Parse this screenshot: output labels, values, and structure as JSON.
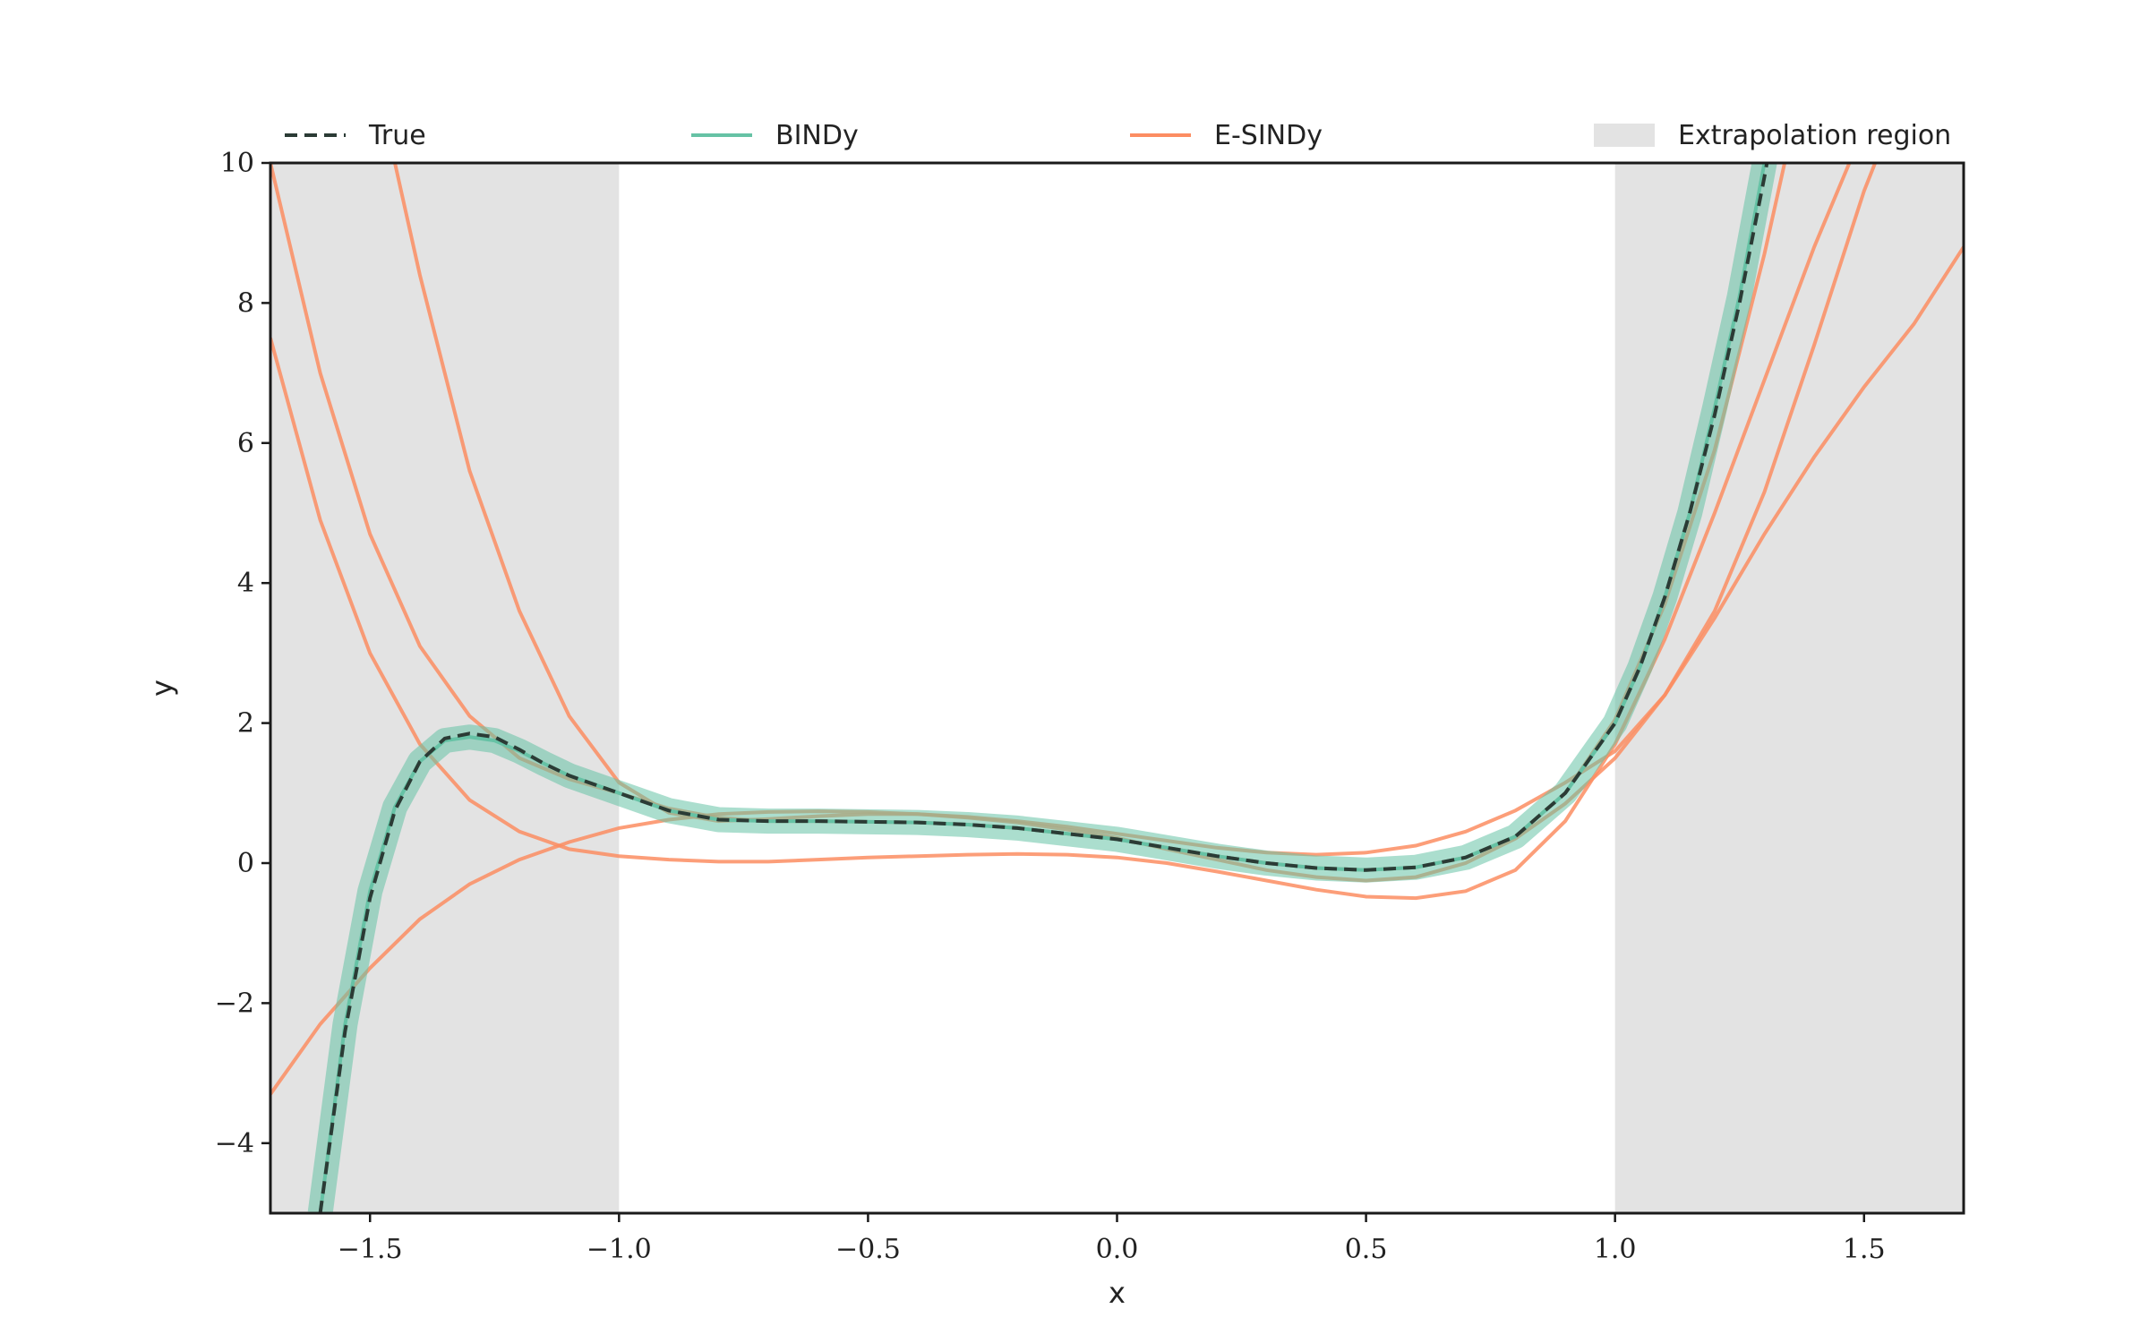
{
  "chart_data": {
    "type": "line",
    "title": "",
    "xlabel": "x",
    "ylabel": "y",
    "xlim": [
      -1.7,
      1.7
    ],
    "ylim": [
      -5,
      10
    ],
    "x_ticks": [
      -1.5,
      -1.0,
      -0.5,
      0.0,
      0.5,
      1.0,
      1.5
    ],
    "x_tick_labels": [
      "−1.5",
      "−1.0",
      "−0.5",
      "0.0",
      "0.5",
      "1.0",
      "1.5"
    ],
    "y_ticks": [
      -4,
      -2,
      0,
      2,
      4,
      6,
      8,
      10
    ],
    "y_tick_labels": [
      "−4",
      "−2",
      "0",
      "2",
      "4",
      "6",
      "8",
      "10"
    ],
    "grid": false,
    "legend_position": "top, above plot area",
    "legend": [
      {
        "label": "True",
        "color": "#2b3b35",
        "style": "dashed"
      },
      {
        "label": "BINDy",
        "color": "#66c2a5",
        "style": "solid"
      },
      {
        "label": "E-SINDy",
        "color": "#fc8d62",
        "style": "solid"
      },
      {
        "label": "Extrapolation region",
        "color": "#e3e3e3",
        "style": "patch"
      }
    ],
    "extrapolation_regions": [
      [
        -1.7,
        -1.0
      ],
      [
        1.0,
        1.7
      ]
    ],
    "series": [
      {
        "name": "True",
        "color": "#2b3b35",
        "style": "dashed",
        "x": [
          -1.6,
          -1.55,
          -1.5,
          -1.45,
          -1.4,
          -1.35,
          -1.3,
          -1.25,
          -1.2,
          -1.15,
          -1.1,
          -1.0,
          -0.9,
          -0.8,
          -0.7,
          -0.6,
          -0.5,
          -0.4,
          -0.3,
          -0.2,
          -0.1,
          0.0,
          0.1,
          0.2,
          0.3,
          0.4,
          0.5,
          0.6,
          0.7,
          0.8,
          0.9,
          1.0,
          1.05,
          1.1,
          1.15,
          1.2,
          1.25,
          1.3,
          1.35
        ],
        "y": [
          -5.0,
          -2.4,
          -0.5,
          0.75,
          1.45,
          1.78,
          1.85,
          1.8,
          1.62,
          1.42,
          1.25,
          1.0,
          0.75,
          0.62,
          0.6,
          0.6,
          0.59,
          0.58,
          0.55,
          0.5,
          0.42,
          0.34,
          0.22,
          0.1,
          0.0,
          -0.07,
          -0.1,
          -0.06,
          0.08,
          0.38,
          1.0,
          2.0,
          2.8,
          3.8,
          5.0,
          6.4,
          8.0,
          9.8,
          11.8
        ]
      },
      {
        "name": "BINDy",
        "color": "#66c2a5",
        "style": "solid",
        "x": [
          -1.6,
          -1.55,
          -1.5,
          -1.45,
          -1.4,
          -1.35,
          -1.3,
          -1.25,
          -1.2,
          -1.15,
          -1.1,
          -1.0,
          -0.9,
          -0.8,
          -0.7,
          -0.6,
          -0.5,
          -0.4,
          -0.3,
          -0.2,
          -0.1,
          0.0,
          0.1,
          0.2,
          0.3,
          0.4,
          0.5,
          0.6,
          0.7,
          0.8,
          0.9,
          1.0,
          1.05,
          1.1,
          1.15,
          1.2,
          1.25,
          1.3,
          1.35
        ],
        "y": [
          -5.0,
          -2.3,
          -0.4,
          0.8,
          1.45,
          1.75,
          1.8,
          1.75,
          1.6,
          1.42,
          1.25,
          1.0,
          0.75,
          0.62,
          0.6,
          0.6,
          0.59,
          0.58,
          0.55,
          0.5,
          0.42,
          0.34,
          0.22,
          0.1,
          0.0,
          -0.07,
          -0.1,
          -0.06,
          0.08,
          0.38,
          1.0,
          2.0,
          2.8,
          3.8,
          5.0,
          6.5,
          8.1,
          10.0,
          12.0
        ]
      },
      {
        "name": "E-SINDy (a)",
        "color": "#fc8d62",
        "style": "solid",
        "x": [
          -1.7,
          -1.6,
          -1.5,
          -1.4,
          -1.3,
          -1.2,
          -1.1,
          -1.0,
          -0.9,
          -0.8,
          -0.7,
          -0.6,
          -0.5,
          -0.4,
          -0.3,
          -0.2,
          -0.1,
          0.0,
          0.1,
          0.2,
          0.3,
          0.4,
          0.5,
          0.6,
          0.7,
          0.8,
          0.9,
          1.0,
          1.1,
          1.2,
          1.3,
          1.35
        ],
        "y": [
          10.0,
          7.0,
          4.7,
          3.1,
          2.1,
          1.5,
          1.2,
          1.0,
          0.78,
          0.65,
          0.6,
          0.6,
          0.59,
          0.58,
          0.55,
          0.5,
          0.42,
          0.34,
          0.22,
          0.1,
          0.0,
          -0.07,
          -0.1,
          -0.06,
          0.08,
          0.38,
          1.0,
          2.05,
          3.7,
          5.9,
          8.7,
          10.3
        ]
      },
      {
        "name": "E-SINDy (b)",
        "color": "#fc8d62",
        "style": "solid",
        "x": [
          -1.7,
          -1.6,
          -1.5,
          -1.4,
          -1.3,
          -1.2,
          -1.1,
          -1.0,
          -0.9,
          -0.8,
          -0.7,
          -0.6,
          -0.5,
          -0.4,
          -0.3,
          -0.2,
          -0.1,
          0.0,
          0.1,
          0.2,
          0.3,
          0.4,
          0.5,
          0.6,
          0.7,
          0.8,
          0.9,
          1.0,
          1.1,
          1.2,
          1.3,
          1.4,
          1.5,
          1.6,
          1.7
        ],
        "y": [
          -3.3,
          -2.3,
          -1.5,
          -0.8,
          -0.3,
          0.05,
          0.3,
          0.5,
          0.62,
          0.7,
          0.73,
          0.74,
          0.73,
          0.7,
          0.65,
          0.58,
          0.48,
          0.36,
          0.2,
          0.05,
          -0.1,
          -0.2,
          -0.25,
          -0.2,
          0.0,
          0.35,
          0.85,
          1.5,
          2.4,
          3.5,
          4.7,
          5.8,
          6.8,
          7.7,
          8.8
        ]
      },
      {
        "name": "E-SINDy (c)",
        "color": "#fc8d62",
        "style": "solid",
        "x": [
          -1.7,
          -1.6,
          -1.5,
          -1.4,
          -1.3,
          -1.2,
          -1.1,
          -1.0,
          -0.9,
          -0.8,
          -0.7,
          -0.6,
          -0.5,
          -0.4,
          -0.3,
          -0.2,
          -0.1,
          0.0,
          0.1,
          0.2,
          0.3,
          0.4,
          0.5,
          0.6,
          0.7,
          0.8,
          0.9,
          1.0,
          1.1,
          1.2,
          1.3,
          1.4,
          1.5
        ],
        "y": [
          7.5,
          4.9,
          3.0,
          1.7,
          0.9,
          0.45,
          0.2,
          0.1,
          0.05,
          0.02,
          0.02,
          0.05,
          0.08,
          0.1,
          0.12,
          0.13,
          0.12,
          0.08,
          0.0,
          -0.12,
          -0.25,
          -0.38,
          -0.48,
          -0.5,
          -0.4,
          -0.1,
          0.6,
          1.7,
          3.2,
          5.0,
          6.9,
          8.8,
          10.5
        ]
      },
      {
        "name": "E-SINDy (d)",
        "color": "#fc8d62",
        "style": "solid",
        "x": [
          -1.45,
          -1.4,
          -1.3,
          -1.2,
          -1.1,
          -1.0,
          -0.9,
          -0.8,
          -0.7,
          -0.6,
          -0.5,
          -0.4,
          -0.3,
          -0.2,
          -0.1,
          0.0,
          0.1,
          0.2,
          0.3,
          0.4,
          0.5,
          0.6,
          0.7,
          0.8,
          0.9,
          1.0,
          1.1,
          1.2,
          1.3,
          1.4,
          1.5,
          1.55
        ],
        "y": [
          10.0,
          8.4,
          5.6,
          3.6,
          2.1,
          1.15,
          0.72,
          0.6,
          0.63,
          0.67,
          0.7,
          0.7,
          0.66,
          0.6,
          0.52,
          0.42,
          0.32,
          0.22,
          0.15,
          0.12,
          0.15,
          0.25,
          0.45,
          0.75,
          1.15,
          1.6,
          2.4,
          3.6,
          5.3,
          7.4,
          9.6,
          10.5
        ]
      }
    ]
  }
}
